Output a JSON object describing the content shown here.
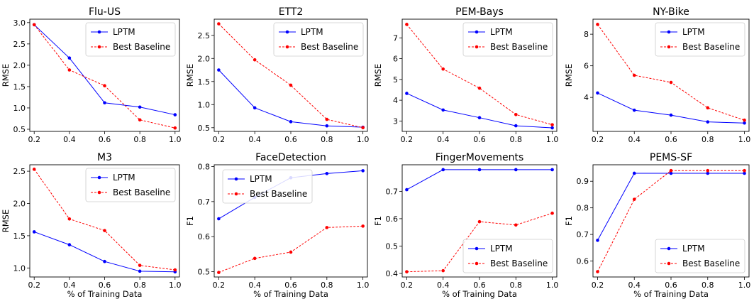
{
  "figure": {
    "series_colors": {
      "LPTM": "#0000ff",
      "Best Baseline": "#ff0000"
    }
  },
  "chart_data": [
    {
      "type": "line",
      "title": "Flu-US",
      "xlabel": "",
      "ylabel": "RMSE",
      "x": [
        0.2,
        0.4,
        0.6,
        0.8,
        1.0
      ],
      "xticks": [
        "0.2",
        "0.4",
        "0.6",
        "0.8",
        "1.0"
      ],
      "ylim": [
        0.45,
        3.08
      ],
      "yticks": [
        0.5,
        1.0,
        1.5,
        2.0,
        2.5,
        3.0
      ],
      "yticklabels": [
        "0.5",
        "1.0",
        "1.5",
        "2.0",
        "2.5",
        "3.0"
      ],
      "legend": "top-right",
      "series": [
        {
          "name": "LPTM",
          "values": [
            2.95,
            2.17,
            1.12,
            1.02,
            0.84
          ]
        },
        {
          "name": "Best Baseline",
          "values": [
            2.95,
            1.89,
            1.52,
            0.72,
            0.53
          ]
        }
      ]
    },
    {
      "type": "line",
      "title": "ETT2",
      "xlabel": "",
      "ylabel": "RMSE",
      "x": [
        0.2,
        0.4,
        0.6,
        0.8,
        1.0
      ],
      "xticks": [
        "0.2",
        "0.4",
        "0.6",
        "0.8",
        "1.0"
      ],
      "ylim": [
        0.42,
        2.85
      ],
      "yticks": [
        0.5,
        1.0,
        1.5,
        2.0,
        2.5
      ],
      "yticklabels": [
        "0.5",
        "1.0",
        "1.5",
        "2.0",
        "2.5"
      ],
      "legend": "top-right",
      "series": [
        {
          "name": "LPTM",
          "values": [
            1.75,
            0.93,
            0.63,
            0.54,
            0.51
          ]
        },
        {
          "name": "Best Baseline",
          "values": [
            2.75,
            1.97,
            1.42,
            0.68,
            0.5
          ]
        }
      ]
    },
    {
      "type": "line",
      "title": "PEM-Bays",
      "xlabel": "",
      "ylabel": "RMSE",
      "x": [
        0.2,
        0.4,
        0.6,
        0.8,
        1.0
      ],
      "xticks": [
        "0.2",
        "0.4",
        "0.6",
        "0.8",
        "1.0"
      ],
      "ylim": [
        2.5,
        7.9
      ],
      "yticks": [
        3,
        4,
        5,
        6,
        7
      ],
      "yticklabels": [
        "3",
        "4",
        "5",
        "6",
        "7"
      ],
      "legend": "top-right",
      "series": [
        {
          "name": "LPTM",
          "values": [
            4.33,
            3.53,
            3.16,
            2.77,
            2.67
          ]
        },
        {
          "name": "Best Baseline",
          "values": [
            7.65,
            5.5,
            4.58,
            3.31,
            2.82
          ]
        }
      ]
    },
    {
      "type": "line",
      "title": "NY-Bike",
      "xlabel": "",
      "ylabel": "RMSE",
      "x": [
        0.2,
        0.4,
        0.6,
        0.8,
        1.0
      ],
      "xticks": [
        "0.2",
        "0.4",
        "0.6",
        "0.8",
        "1.0"
      ],
      "ylim": [
        1.85,
        8.95
      ],
      "yticks": [
        4,
        6,
        8
      ],
      "yticklabels": [
        "4",
        "6",
        "8"
      ],
      "legend": "top-right",
      "series": [
        {
          "name": "LPTM",
          "values": [
            4.28,
            3.19,
            2.88,
            2.45,
            2.38
          ]
        },
        {
          "name": "Best Baseline",
          "values": [
            8.62,
            5.4,
            4.95,
            3.34,
            2.56
          ]
        }
      ]
    },
    {
      "type": "line",
      "title": "M3",
      "xlabel": "% of Training Data",
      "ylabel": "RMSE",
      "x": [
        0.2,
        0.4,
        0.6,
        0.8,
        1.0
      ],
      "xticks": [
        "0.2",
        "0.4",
        "0.6",
        "0.8",
        "1.0"
      ],
      "ylim": [
        0.86,
        2.6
      ],
      "yticks": [
        1.0,
        1.5,
        2.0,
        2.5
      ],
      "yticklabels": [
        "1.0",
        "1.5",
        "2.0",
        "2.5"
      ],
      "legend": "top-right",
      "series": [
        {
          "name": "LPTM",
          "values": [
            1.56,
            1.36,
            1.1,
            0.95,
            0.94
          ]
        },
        {
          "name": "Best Baseline",
          "values": [
            2.53,
            1.76,
            1.58,
            1.04,
            0.97
          ]
        }
      ]
    },
    {
      "type": "line",
      "title": "FaceDetection",
      "xlabel": "% of Training Data",
      "ylabel": "F1",
      "x": [
        0.2,
        0.4,
        0.6,
        0.8,
        1.0
      ],
      "xticks": [
        "0.2",
        "0.4",
        "0.6",
        "0.8",
        "1.0"
      ],
      "ylim": [
        0.485,
        0.805
      ],
      "yticks": [
        0.5,
        0.6,
        0.7,
        0.8
      ],
      "yticklabels": [
        "0.5",
        "0.6",
        "0.7",
        "0.8"
      ],
      "legend": "top-left",
      "series": [
        {
          "name": "LPTM",
          "values": [
            0.651,
            0.712,
            0.768,
            0.78,
            0.788
          ]
        },
        {
          "name": "Best Baseline",
          "values": [
            0.498,
            0.538,
            0.556,
            0.626,
            0.63
          ]
        }
      ]
    },
    {
      "type": "line",
      "title": "FingerMovements",
      "xlabel": "% of Training Data",
      "ylabel": "F1",
      "x": [
        0.2,
        0.4,
        0.6,
        0.8,
        1.0
      ],
      "xticks": [
        "0.2",
        "0.4",
        "0.6",
        "0.8",
        "1.0"
      ],
      "ylim": [
        0.387,
        0.797
      ],
      "yticks": [
        0.4,
        0.5,
        0.6,
        0.7
      ],
      "yticklabels": [
        "0.4",
        "0.5",
        "0.6",
        "0.7"
      ],
      "legend": "bottom-right",
      "series": [
        {
          "name": "LPTM",
          "values": [
            0.706,
            0.779,
            0.779,
            0.779,
            0.779
          ]
        },
        {
          "name": "Best Baseline",
          "values": [
            0.406,
            0.41,
            0.589,
            0.577,
            0.62
          ]
        }
      ]
    },
    {
      "type": "line",
      "title": "PEMS-SF",
      "xlabel": "% of Training Data",
      "ylabel": "F1",
      "x": [
        0.2,
        0.4,
        0.6,
        0.8,
        1.0
      ],
      "xticks": [
        "0.2",
        "0.4",
        "0.6",
        "0.8",
        "1.0"
      ],
      "ylim": [
        0.54,
        0.962
      ],
      "yticks": [
        0.6,
        0.7,
        0.8,
        0.9
      ],
      "yticklabels": [
        "0.6",
        "0.7",
        "0.8",
        "0.9"
      ],
      "legend": "bottom-right",
      "series": [
        {
          "name": "LPTM",
          "values": [
            0.678,
            0.93,
            0.93,
            0.93,
            0.93
          ]
        },
        {
          "name": "Best Baseline",
          "values": [
            0.56,
            0.832,
            0.94,
            0.94,
            0.94
          ]
        }
      ]
    }
  ]
}
